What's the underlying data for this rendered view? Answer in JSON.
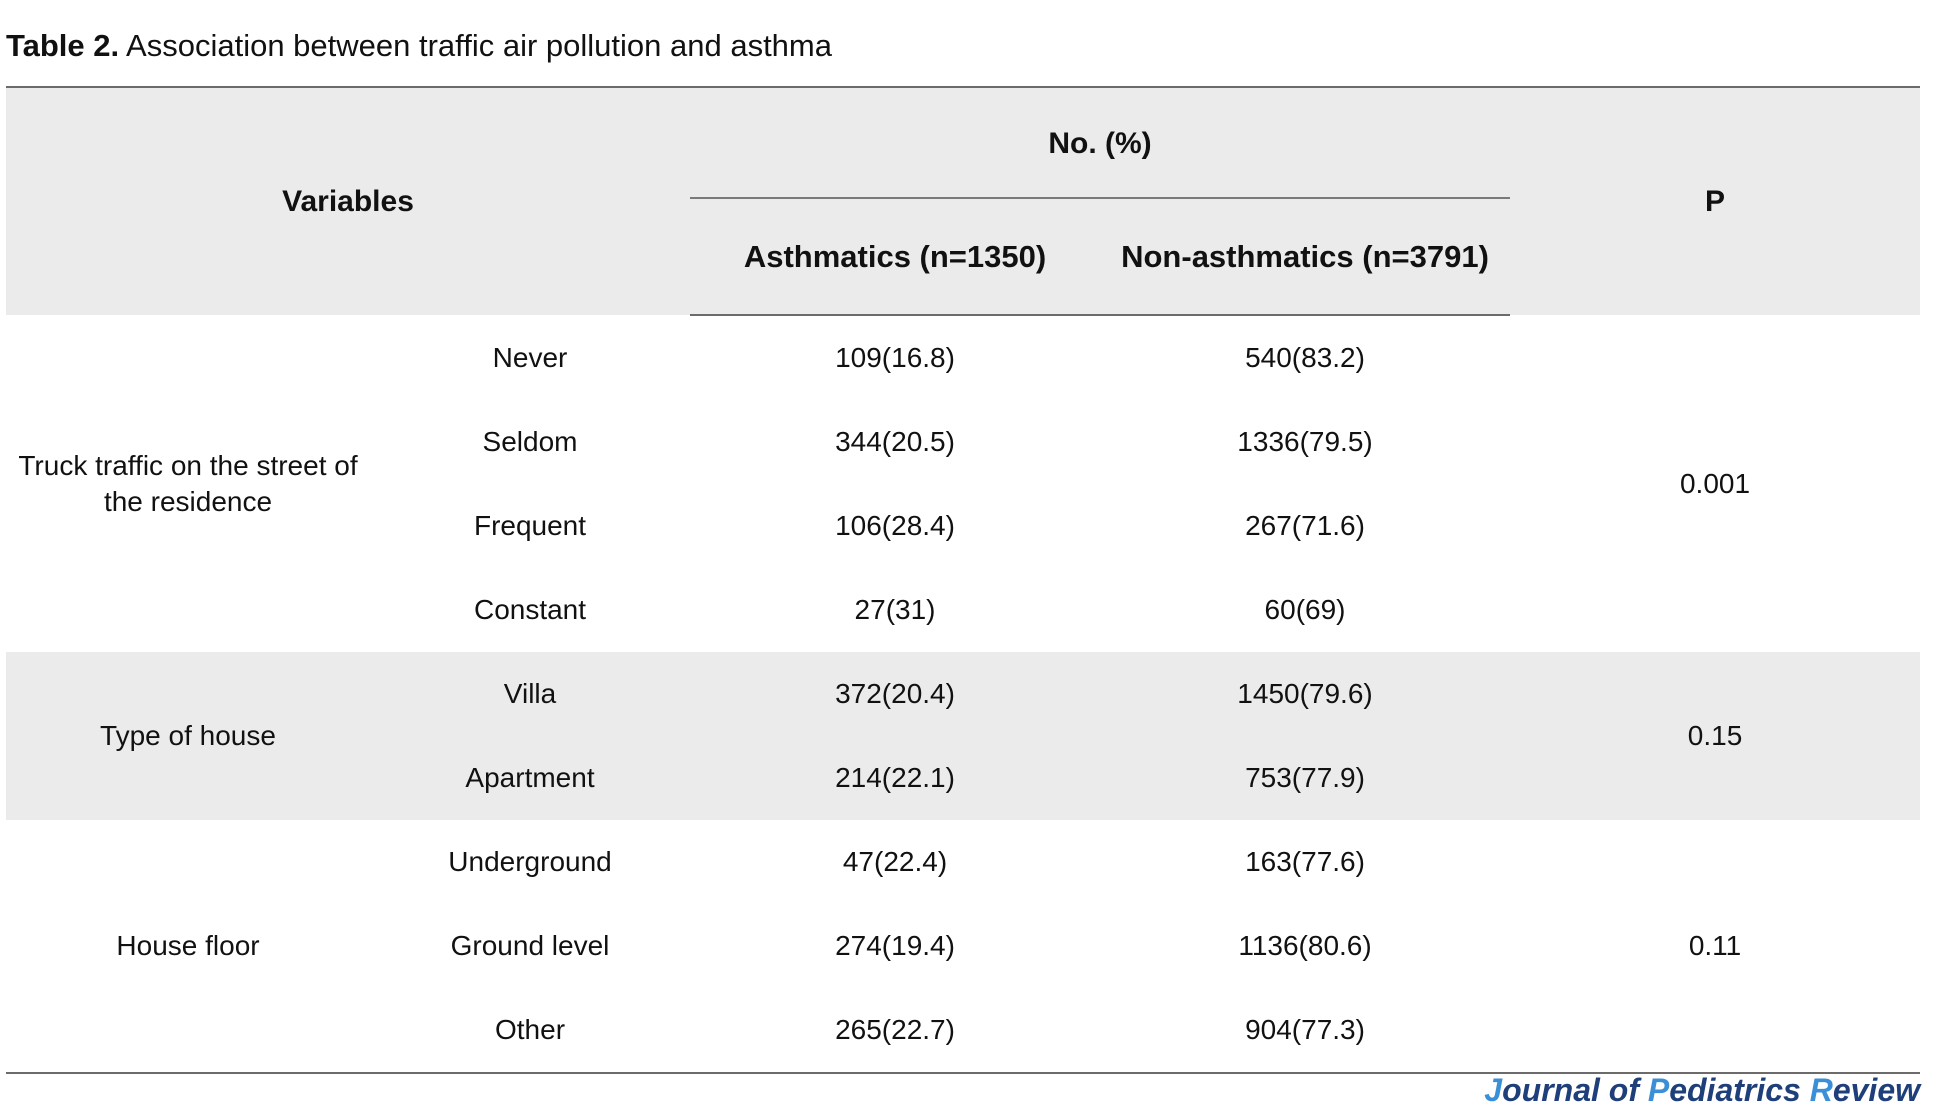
{
  "caption": {
    "label": "Table 2.",
    "text": " Association between traffic air pollution and asthma"
  },
  "table": {
    "headers": {
      "variables": "Variables",
      "group": "No. (%)",
      "asthmatics": "Asthmatics (n=1350)",
      "non_asthmatics": "Non-asthmatics (n=3791)",
      "p": "P"
    },
    "groups": [
      {
        "variable": "Truck traffic on the street of the residence",
        "p": "0.001",
        "rows": [
          {
            "category": "Never",
            "asthmatics": "109(16.8)",
            "non_asthmatics": "540(83.2)"
          },
          {
            "category": "Seldom",
            "asthmatics": "344(20.5)",
            "non_asthmatics": "1336(79.5)"
          },
          {
            "category": "Frequent",
            "asthmatics": "106(28.4)",
            "non_asthmatics": "267(71.6)"
          },
          {
            "category": "Constant",
            "asthmatics": "27(31)",
            "non_asthmatics": "60(69)"
          }
        ]
      },
      {
        "variable": "Type of house",
        "p": "0.15",
        "rows": [
          {
            "category": "Villa",
            "asthmatics": "372(20.4)",
            "non_asthmatics": "1450(79.6)"
          },
          {
            "category": "Apartment",
            "asthmatics": "214(22.1)",
            "non_asthmatics": "753(77.9)"
          }
        ]
      },
      {
        "variable": "House floor",
        "p": "0.11",
        "rows": [
          {
            "category": "Underground",
            "asthmatics": "47(22.4)",
            "non_asthmatics": "163(77.6)"
          },
          {
            "category": "Ground level",
            "asthmatics": "274(19.4)",
            "non_asthmatics": "1136(80.6)"
          },
          {
            "category": "Other",
            "asthmatics": "265(22.7)",
            "non_asthmatics": "904(77.3)"
          }
        ]
      }
    ]
  },
  "journal": {
    "part1_initial": "J",
    "part1_rest": "ournal of ",
    "part2_initial": "P",
    "part2_rest": "ediatrics ",
    "part3_initial": "R",
    "part3_rest": "eview",
    "accent_color": "#3a8fd6",
    "text_color": "#1f3f7a"
  }
}
